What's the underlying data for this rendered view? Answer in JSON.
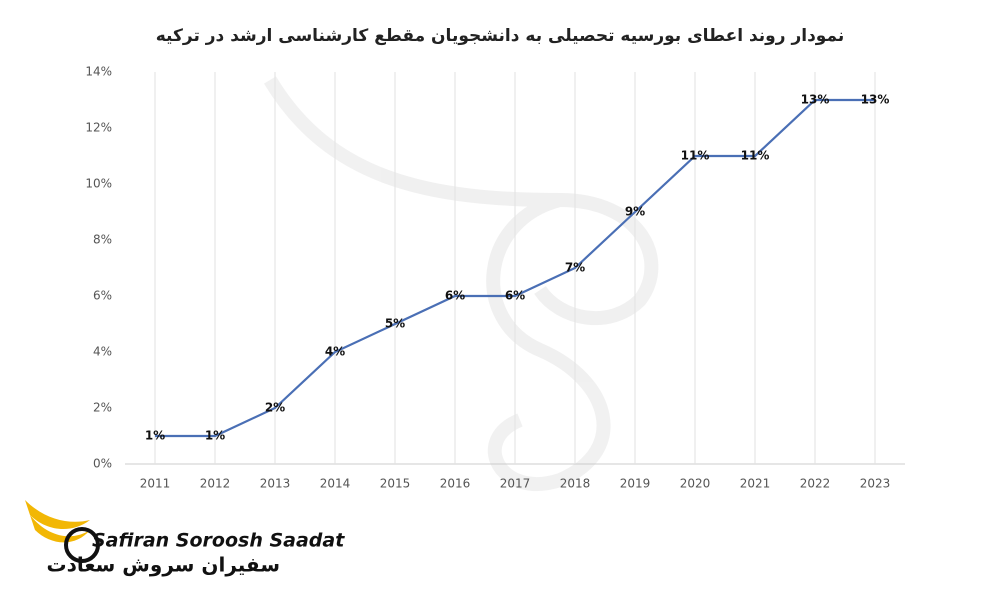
{
  "chart_data": {
    "type": "line",
    "title": "نمودار روند اعطای بورسیه تحصیلی به دانشجویان مقطع کارشناسی ارشد در ترکیه",
    "categories": [
      "2011",
      "2012",
      "2013",
      "2014",
      "2015",
      "2016",
      "2017",
      "2018",
      "2019",
      "2020",
      "2021",
      "2022",
      "2023"
    ],
    "values": [
      1,
      1,
      2,
      4,
      5,
      6,
      6,
      7,
      9,
      11,
      11,
      13,
      13
    ],
    "value_labels": [
      "1%",
      "1%",
      "2%",
      "4%",
      "5%",
      "6%",
      "6%",
      "7%",
      "9%",
      "11%",
      "11%",
      "13%",
      "13%"
    ],
    "color": "#4a6fb5",
    "ylim": [
      0,
      14
    ],
    "yticks": [
      {
        "value": 0,
        "label": "0%"
      },
      {
        "value": 2,
        "label": "2%"
      },
      {
        "value": 4,
        "label": "4%"
      },
      {
        "value": 6,
        "label": "6%"
      },
      {
        "value": 8,
        "label": "8%"
      },
      {
        "value": 10,
        "label": "10%"
      },
      {
        "value": 12,
        "label": "12%"
      },
      {
        "value": 14,
        "label": "14%"
      }
    ],
    "grid": false
  },
  "logo": {
    "latin": "Safiran Soroosh Saadat",
    "persian": "سفیران سروش سعادت"
  }
}
